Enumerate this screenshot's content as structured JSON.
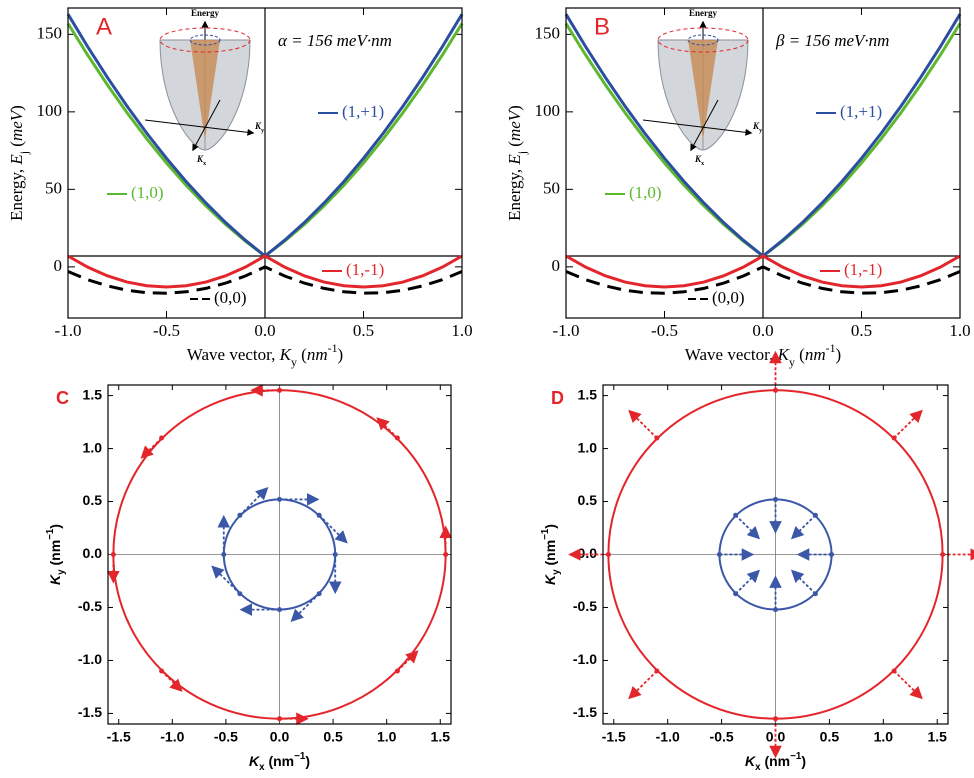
{
  "chart_data": [
    {
      "type": "line",
      "label": "A",
      "annotation": "α = 156 meV·nm",
      "xlabel": [
        "Wave vector,  ",
        "K",
        "y",
        " (",
        "nm",
        "-1",
        ")"
      ],
      "ylabel": [
        "Energy, ",
        "E",
        "j",
        " (",
        "meV",
        ")"
      ],
      "inset": {
        "top": "Energy",
        "right": [
          "K",
          "y"
        ],
        "front": [
          "K",
          "x"
        ]
      },
      "xlim": [
        -1,
        1
      ],
      "ylim": [
        -33,
        167
      ],
      "xticks": [
        {
          "value": -1,
          "label": "-1.0"
        },
        -0.5,
        {
          "value": 0,
          "label": "0.0"
        },
        0.5,
        {
          "value": 1,
          "label": "1.0"
        }
      ],
      "yticks": [
        0,
        50,
        100,
        150
      ],
      "hline": 7,
      "x": [
        -1,
        -0.9,
        -0.8,
        -0.7,
        -0.6,
        -0.5,
        -0.4,
        -0.3,
        -0.2,
        -0.1,
        0,
        0.1,
        0.2,
        0.3,
        0.4,
        0.5,
        0.6,
        0.7,
        0.8,
        0.9,
        1
      ],
      "series": [
        {
          "name": "(1,0)",
          "color": "#5cb82e",
          "dashed": false,
          "values": [
            157,
            136.6,
            117.4,
            99.4,
            82.6,
            67,
            52.6,
            39.4,
            27.4,
            16.6,
            7,
            16.6,
            27.4,
            39.4,
            52.6,
            67,
            82.6,
            99.4,
            117.4,
            136.6,
            157
          ]
        },
        {
          "name": "(1,+1)",
          "color": "#2c4ea0",
          "dashed": false,
          "values": [
            163,
            142,
            122.2,
            103.6,
            86.2,
            70,
            55,
            41.2,
            28.6,
            17.2,
            7,
            17.2,
            28.6,
            41.2,
            55,
            70,
            86.2,
            103.6,
            122.2,
            142,
            163
          ]
        },
        {
          "name": "(1,-1)",
          "color": "#e3262b",
          "dashed": false,
          "values": [
            7,
            -0.2,
            -5.8,
            -9.8,
            -12.2,
            -13,
            -12.2,
            -9.8,
            -5.8,
            -0.2,
            7,
            -0.2,
            -5.8,
            -9.8,
            -12.2,
            -13,
            -12.2,
            -9.8,
            -5.8,
            -0.2,
            7
          ]
        },
        {
          "name": "(0,0)",
          "color": "#000000",
          "dashed": true,
          "values": [
            -3,
            -8.3,
            -12.3,
            -15.1,
            -16.7,
            -17,
            -16.1,
            -13.9,
            -10.5,
            -5.9,
            0,
            -5.9,
            -10.5,
            -13.9,
            -16.1,
            -17,
            -16.7,
            -15.1,
            -12.3,
            -8.3,
            -3
          ]
        }
      ]
    },
    {
      "type": "line",
      "label": "B",
      "annotation": "β = 156 meV·nm",
      "xlabel": [
        "Wave vector,  ",
        "K",
        "y",
        " (",
        "nm",
        "-1",
        ")"
      ],
      "ylabel": [
        "Energy, ",
        "E",
        "j",
        " (",
        "meV",
        ")"
      ],
      "inset": {
        "top": "Energy",
        "right": [
          "K",
          "y"
        ],
        "front": [
          "K",
          "x"
        ]
      },
      "xlim": [
        -1,
        1
      ],
      "ylim": [
        -33,
        167
      ],
      "xticks": [
        {
          "value": -1,
          "label": "-1.0"
        },
        -0.5,
        {
          "value": 0,
          "label": "0.0"
        },
        0.5,
        {
          "value": 1,
          "label": "1.0"
        }
      ],
      "yticks": [
        0,
        50,
        100,
        150
      ],
      "hline": 7,
      "x": [
        -1,
        -0.9,
        -0.8,
        -0.7,
        -0.6,
        -0.5,
        -0.4,
        -0.3,
        -0.2,
        -0.1,
        0,
        0.1,
        0.2,
        0.3,
        0.4,
        0.5,
        0.6,
        0.7,
        0.8,
        0.9,
        1
      ],
      "series": [
        {
          "name": "(1,0)",
          "color": "#5cb82e",
          "dashed": false,
          "values": [
            157,
            136.6,
            117.4,
            99.4,
            82.6,
            67,
            52.6,
            39.4,
            27.4,
            16.6,
            7,
            16.6,
            27.4,
            39.4,
            52.6,
            67,
            82.6,
            99.4,
            117.4,
            136.6,
            157
          ]
        },
        {
          "name": "(1,+1)",
          "color": "#2c4ea0",
          "dashed": false,
          "values": [
            163,
            142,
            122.2,
            103.6,
            86.2,
            70,
            55,
            41.2,
            28.6,
            17.2,
            7,
            17.2,
            28.6,
            41.2,
            55,
            70,
            86.2,
            103.6,
            122.2,
            142,
            163
          ]
        },
        {
          "name": "(1,-1)",
          "color": "#e3262b",
          "dashed": false,
          "values": [
            7,
            -0.2,
            -5.8,
            -9.8,
            -12.2,
            -13,
            -12.2,
            -9.8,
            -5.8,
            -0.2,
            7,
            -0.2,
            -5.8,
            -9.8,
            -12.2,
            -13,
            -12.2,
            -9.8,
            -5.8,
            -0.2,
            7
          ]
        },
        {
          "name": "(0,0)",
          "color": "#000000",
          "dashed": true,
          "values": [
            -3,
            -8.3,
            -12.3,
            -15.1,
            -16.7,
            -17,
            -16.1,
            -13.9,
            -10.5,
            -5.9,
            0,
            -5.9,
            -10.5,
            -13.9,
            -16.1,
            -17,
            -16.7,
            -15.1,
            -12.3,
            -8.3,
            -3
          ]
        }
      ]
    },
    {
      "type": "spin",
      "label": "C",
      "xlabel": [
        "K",
        "x",
        " (nm",
        "−1",
        ")"
      ],
      "ylabel": [
        "K",
        "y",
        " (nm",
        "−1",
        ")"
      ],
      "xlim": [
        -1.6,
        1.6
      ],
      "ylim": [
        -1.6,
        1.6
      ],
      "xticks": [
        -1.5,
        {
          "value": -1,
          "label": "-1.0"
        },
        -0.5,
        {
          "value": 0,
          "label": "0.0"
        },
        0.5,
        {
          "value": 1,
          "label": "1.0"
        },
        1.5
      ],
      "yticks": [
        -1.5,
        {
          "value": -1,
          "label": "-1.0"
        },
        -0.5,
        {
          "value": 0,
          "label": "0.0"
        },
        0.5,
        {
          "value": 1,
          "label": "1.0"
        },
        1.5
      ],
      "rings": [
        {
          "color": "#e3262b",
          "radius": 1.55,
          "x": [
            1.55,
            1.1,
            0,
            -1.1,
            -1.55,
            -1.1,
            0,
            1.1
          ],
          "y": [
            0,
            1.1,
            1.55,
            1.1,
            0,
            -1.1,
            -1.55,
            -1.1
          ],
          "dx": [
            0,
            -0.18,
            -0.25,
            -0.18,
            0,
            0.18,
            0.25,
            0.18
          ],
          "dy": [
            0.25,
            0.18,
            0,
            -0.18,
            -0.25,
            -0.18,
            0,
            0.18
          ]
        },
        {
          "color": "#3b57a8",
          "radius": 0.52,
          "x": [
            0.52,
            0.37,
            0,
            -0.37,
            -0.52,
            -0.37,
            0,
            0.37
          ],
          "y": [
            0,
            0.37,
            0.52,
            0.37,
            0,
            -0.37,
            -0.52,
            -0.37
          ],
          "dx": [
            0,
            0.25,
            0.35,
            0.25,
            0,
            -0.25,
            -0.35,
            -0.25
          ],
          "dy": [
            -0.35,
            -0.25,
            0,
            0.25,
            0.35,
            0.25,
            0,
            -0.25
          ]
        }
      ]
    },
    {
      "type": "spin",
      "label": "D",
      "xlabel": [
        "K",
        "x",
        " (nm",
        "−1",
        ")"
      ],
      "ylabel": [
        "K",
        "y",
        " (nm",
        "−1",
        ")"
      ],
      "xlim": [
        -1.6,
        1.6
      ],
      "ylim": [
        -1.6,
        1.6
      ],
      "xticks": [
        -1.5,
        {
          "value": -1,
          "label": "-1.0"
        },
        -0.5,
        {
          "value": 0,
          "label": "0.0"
        },
        0.5,
        {
          "value": 1,
          "label": "1.0"
        },
        1.5
      ],
      "yticks": [
        -1.5,
        {
          "value": -1,
          "label": "-1.0"
        },
        -0.5,
        {
          "value": 0,
          "label": "0.0"
        },
        0.5,
        {
          "value": 1,
          "label": "1.0"
        },
        1.5
      ],
      "rings": [
        {
          "color": "#e3262b",
          "radius": 1.55,
          "x": [
            1.55,
            1.1,
            0,
            -1.1,
            -1.55,
            -1.1,
            0,
            1.1
          ],
          "y": [
            0,
            1.1,
            1.55,
            1.1,
            0,
            -1.1,
            -1.55,
            -1.1
          ],
          "dx": [
            0.35,
            0.25,
            0,
            -0.25,
            -0.35,
            -0.25,
            0,
            0.25
          ],
          "dy": [
            0,
            0.25,
            0.35,
            0.25,
            0,
            -0.25,
            -0.35,
            -0.25
          ]
        },
        {
          "color": "#3b57a8",
          "radius": 0.52,
          "x": [
            0.52,
            0.37,
            0,
            -0.37,
            -0.52,
            -0.37,
            0,
            0.37
          ],
          "y": [
            0,
            0.37,
            0.52,
            0.37,
            0,
            -0.37,
            -0.52,
            -0.37
          ],
          "dx": [
            -0.3,
            -0.21,
            0,
            0.21,
            0.3,
            0.21,
            0,
            -0.21
          ],
          "dy": [
            0,
            -0.21,
            -0.3,
            -0.21,
            0,
            0.21,
            0.3,
            0.21
          ]
        }
      ]
    }
  ]
}
